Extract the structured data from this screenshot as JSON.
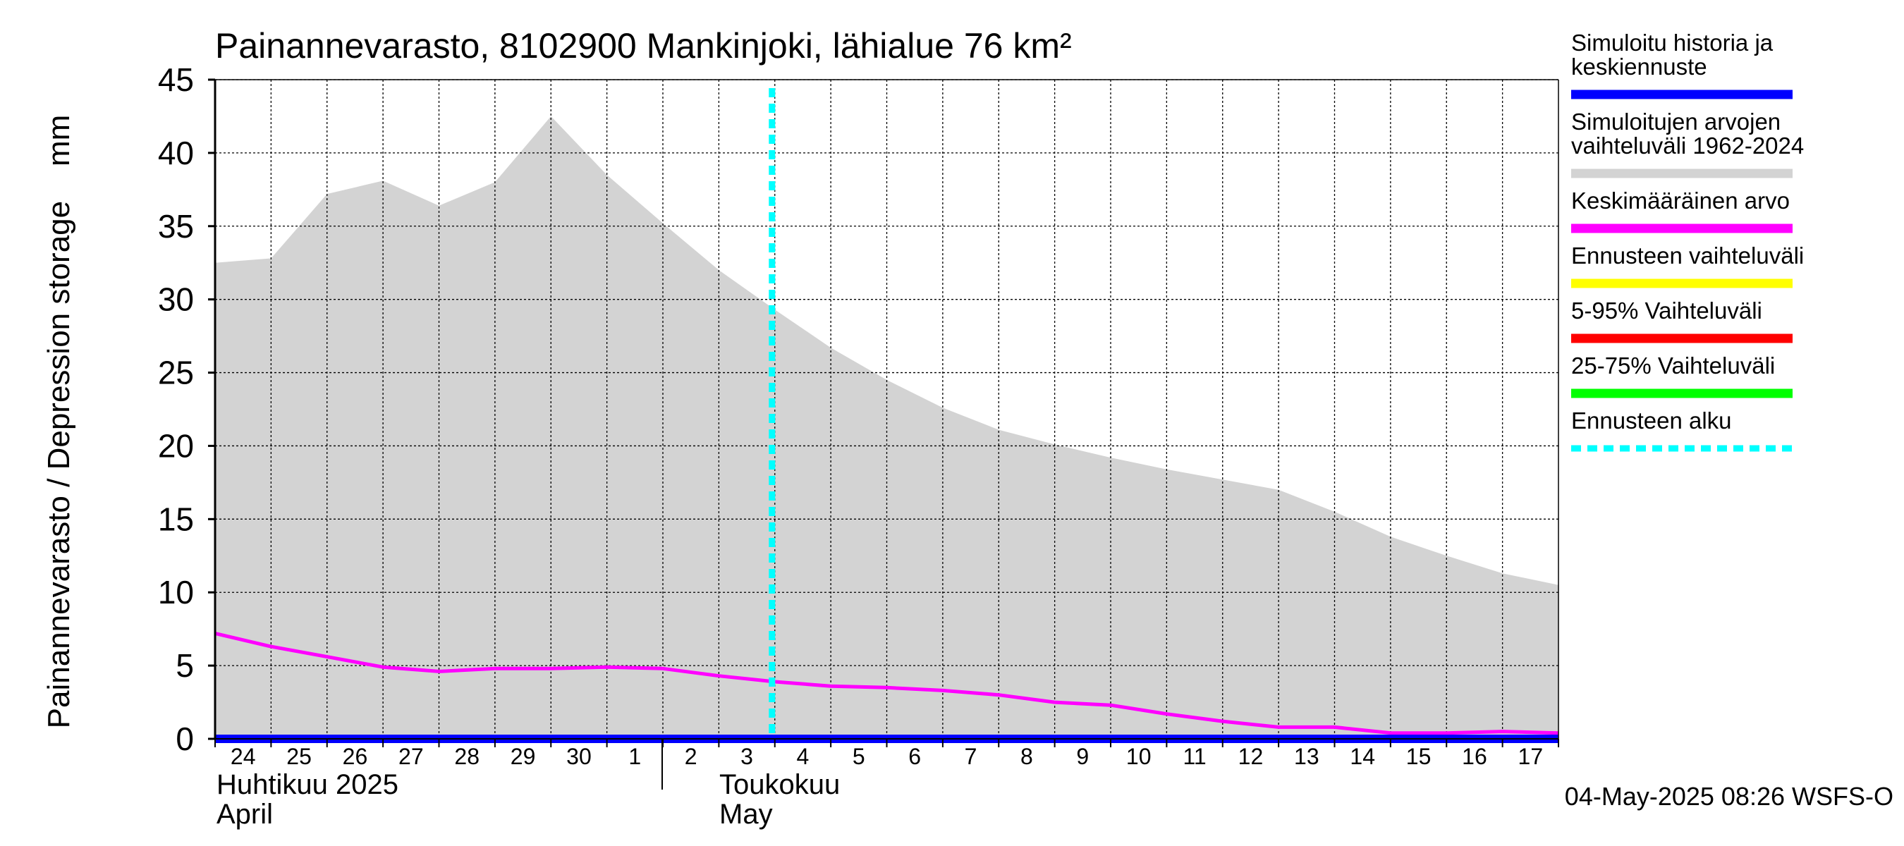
{
  "chart_data": {
    "type": "area",
    "title": "Painannevarasto, 8102900 Mankinjoki, lähialue 76 km²",
    "ylabel": "Painannevarasto / Depression storage    mm",
    "ylim": [
      0,
      45
    ],
    "yticks": [
      0,
      5,
      10,
      15,
      20,
      25,
      30,
      35,
      40,
      45
    ],
    "x_start": "2025-04-24",
    "x_end": "2025-05-18",
    "day_labels": [
      "24",
      "25",
      "26",
      "27",
      "28",
      "29",
      "30",
      "1",
      "2",
      "3",
      "4",
      "5",
      "6",
      "7",
      "8",
      "9",
      "10",
      "11",
      "12",
      "13",
      "14",
      "15",
      "16",
      "17"
    ],
    "month_labels": [
      {
        "line1": "Huhtikuu  2025",
        "line2": "April",
        "date": "2025-04-24"
      },
      {
        "line1": "Toukokuu",
        "line2": "May",
        "date": "2025-05-02"
      }
    ],
    "forecast_start": "2025-05-04",
    "grid": true,
    "series": [
      {
        "name": "Simuloitujen arvojen vaihteluväli 1962-2024",
        "kind": "band",
        "color": "#d3d3d3",
        "x": [
          "2025-04-24",
          "2025-04-25",
          "2025-04-26",
          "2025-04-27",
          "2025-04-28",
          "2025-04-29",
          "2025-04-30",
          "2025-05-01",
          "2025-05-02",
          "2025-05-03",
          "2025-05-04",
          "2025-05-05",
          "2025-05-06",
          "2025-05-07",
          "2025-05-08",
          "2025-05-09",
          "2025-05-10",
          "2025-05-11",
          "2025-05-12",
          "2025-05-13",
          "2025-05-14",
          "2025-05-15",
          "2025-05-16",
          "2025-05-17",
          "2025-05-18"
        ],
        "upper": [
          32.5,
          32.8,
          37.2,
          38.1,
          36.4,
          38.0,
          42.5,
          38.5,
          35.2,
          32.0,
          29.3,
          26.7,
          24.5,
          22.6,
          21.1,
          20.1,
          19.2,
          18.4,
          17.7,
          17.0,
          15.5,
          13.8,
          12.5,
          11.3,
          10.5
        ],
        "lower": [
          0,
          0,
          0,
          0,
          0,
          0,
          0,
          0,
          0,
          0,
          0,
          0,
          0,
          0,
          0,
          0,
          0,
          0,
          0,
          0,
          0,
          0,
          0,
          0,
          0
        ]
      },
      {
        "name": "Keskimääräinen arvo",
        "kind": "line",
        "color": "#ff00ff",
        "x": [
          "2025-04-24",
          "2025-04-25",
          "2025-04-26",
          "2025-04-27",
          "2025-04-28",
          "2025-04-29",
          "2025-04-30",
          "2025-05-01",
          "2025-05-02",
          "2025-05-03",
          "2025-05-04",
          "2025-05-05",
          "2025-05-06",
          "2025-05-07",
          "2025-05-08",
          "2025-05-09",
          "2025-05-10",
          "2025-05-11",
          "2025-05-12",
          "2025-05-13",
          "2025-05-14",
          "2025-05-15",
          "2025-05-16",
          "2025-05-17",
          "2025-05-18"
        ],
        "values": [
          7.2,
          6.3,
          5.6,
          4.9,
          4.6,
          4.8,
          4.8,
          4.9,
          4.8,
          4.3,
          3.9,
          3.6,
          3.5,
          3.3,
          3.0,
          2.5,
          2.3,
          1.7,
          1.2,
          0.8,
          0.8,
          0.4,
          0.4,
          0.5,
          0.4
        ]
      },
      {
        "name": "Simuloitu historia ja keskiennuste",
        "kind": "line",
        "color": "#0000ff",
        "x": [
          "2025-04-24",
          "2025-05-18"
        ],
        "values": [
          0.0,
          0.0
        ]
      }
    ],
    "legend": {
      "placement": "right",
      "items": [
        {
          "label_lines": [
            "Simuloitu historia ja",
            "keskiennuste"
          ],
          "color": "#0000ff",
          "style": "solid"
        },
        {
          "label_lines": [
            "Simuloitujen arvojen",
            "vaihteluväli 1962-2024"
          ],
          "color": "#d3d3d3",
          "style": "solid"
        },
        {
          "label_lines": [
            "Keskimääräinen arvo"
          ],
          "color": "#ff00ff",
          "style": "solid"
        },
        {
          "label_lines": [
            "Ennusteen vaihteluväli"
          ],
          "color": "#ffff00",
          "style": "solid"
        },
        {
          "label_lines": [
            "5-95% Vaihteluväli"
          ],
          "color": "#ff0000",
          "style": "solid"
        },
        {
          "label_lines": [
            "25-75% Vaihteluväli"
          ],
          "color": "#00ff00",
          "style": "solid"
        },
        {
          "label_lines": [
            "Ennusteen alku"
          ],
          "color": "#00ffff",
          "style": "dashed"
        }
      ]
    },
    "footer": "04-May-2025 08:26 WSFS-O"
  }
}
